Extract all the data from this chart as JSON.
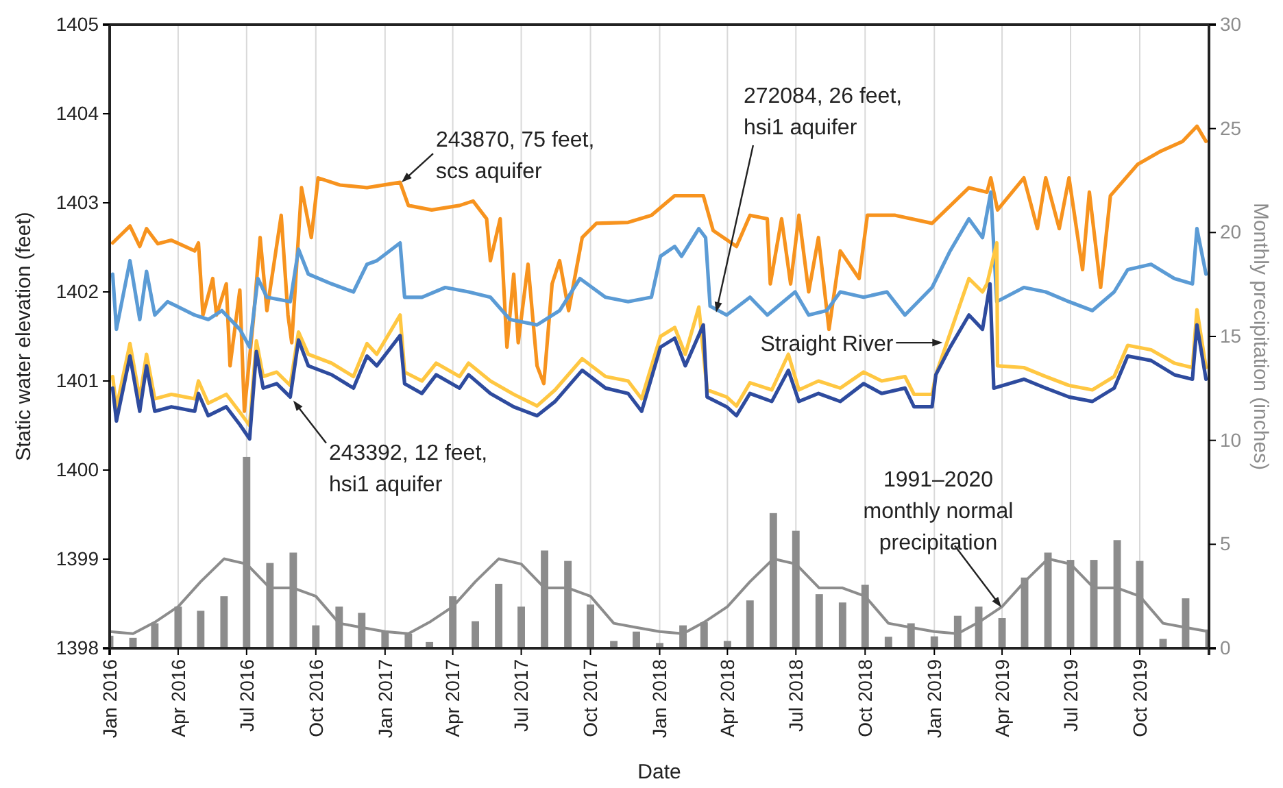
{
  "chart_data": {
    "type": "line",
    "xlabel": "Date",
    "ylabel": "Static water elevation (feet)",
    "y2label": "Monthly precipitation (inches)",
    "xlim": [
      "2016-01-01",
      "2020-01-01"
    ],
    "xticks": [
      {
        "value": "2016-01-01",
        "label": "Jan 2016"
      },
      {
        "value": "2016-04-01",
        "label": "Apr 2016"
      },
      {
        "value": "2016-07-01",
        "label": "Jul 2016"
      },
      {
        "value": "2016-10-01",
        "label": "Oct 2016"
      },
      {
        "value": "2017-01-01",
        "label": "Jan 2017"
      },
      {
        "value": "2017-04-01",
        "label": "Apr 2017"
      },
      {
        "value": "2017-07-01",
        "label": "Jul 2017"
      },
      {
        "value": "2017-10-01",
        "label": "Oct 2017"
      },
      {
        "value": "2018-01-01",
        "label": "Jan 2018"
      },
      {
        "value": "2018-04-01",
        "label": "Apr 2018"
      },
      {
        "value": "2018-07-01",
        "label": "Jul 2018"
      },
      {
        "value": "2018-10-01",
        "label": "Oct 2018"
      },
      {
        "value": "2019-01-01",
        "label": "Jan 2019"
      },
      {
        "value": "2019-04-01",
        "label": "Apr 2019"
      },
      {
        "value": "2019-07-01",
        "label": "Jul 2019"
      },
      {
        "value": "2019-10-01",
        "label": "Oct 2019"
      }
    ],
    "ylim": [
      1398,
      1405
    ],
    "yticks": [
      1398,
      1399,
      1400,
      1401,
      1402,
      1403,
      1404,
      1405
    ],
    "y2lim": [
      0,
      30
    ],
    "y2ticks": [
      0,
      5,
      10,
      15,
      20,
      25,
      30
    ],
    "grid": "x",
    "series": [
      {
        "type": "bar",
        "axis": "y2",
        "color": "#8c8c8c",
        "x": [
          "2016-01",
          "2016-02",
          "2016-03",
          "2016-04",
          "2016-05",
          "2016-06",
          "2016-07",
          "2016-08",
          "2016-09",
          "2016-10",
          "2016-11",
          "2016-12",
          "2017-01",
          "2017-02",
          "2017-03",
          "2017-04",
          "2017-05",
          "2017-06",
          "2017-07",
          "2017-08",
          "2017-09",
          "2017-10",
          "2017-11",
          "2017-12",
          "2018-01",
          "2018-02",
          "2018-03",
          "2018-04",
          "2018-05",
          "2018-06",
          "2018-07",
          "2018-08",
          "2018-09",
          "2018-10",
          "2018-11",
          "2018-12",
          "2019-01",
          "2019-02",
          "2019-03",
          "2019-04",
          "2019-05",
          "2019-06",
          "2019-07",
          "2019-08",
          "2019-09",
          "2019-10",
          "2019-11",
          "2019-12",
          "2020-01"
        ],
        "values": [
          0.6,
          0.5,
          1.2,
          2.0,
          1.8,
          2.5,
          9.2,
          4.1,
          4.6,
          1.1,
          2.0,
          1.7,
          0.8,
          0.7,
          0.3,
          2.5,
          1.3,
          3.1,
          2.0,
          4.7,
          4.2,
          2.1,
          0.35,
          0.8,
          0.25,
          1.1,
          1.25,
          0.35,
          2.3,
          6.5,
          5.65,
          2.6,
          2.2,
          3.05,
          0.55,
          1.2,
          0.57,
          1.56,
          2.0,
          1.45,
          3.4,
          4.6,
          4.25,
          4.25,
          5.2,
          4.2,
          0.45,
          2.4,
          0.9
        ]
      },
      {
        "axis": "y2",
        "color": "#8c8c8c",
        "x": [
          "2016-01",
          "2016-02",
          "2016-03",
          "2016-04",
          "2016-05",
          "2016-06",
          "2016-07",
          "2016-08",
          "2016-09",
          "2016-10",
          "2016-11",
          "2016-12",
          "2017-01",
          "2017-02",
          "2017-03",
          "2017-04",
          "2017-05",
          "2017-06",
          "2017-07",
          "2017-08",
          "2017-09",
          "2017-10",
          "2017-11",
          "2017-12",
          "2018-01",
          "2018-02",
          "2018-03",
          "2018-04",
          "2018-05",
          "2018-06",
          "2018-07",
          "2018-08",
          "2018-09",
          "2018-10",
          "2018-11",
          "2018-12",
          "2019-01",
          "2019-02",
          "2019-03",
          "2019-04",
          "2019-05",
          "2019-06",
          "2019-07",
          "2019-08",
          "2019-09",
          "2019-10",
          "2019-11",
          "2019-12",
          "2020-01"
        ],
        "values": [
          0.8,
          0.7,
          1.25,
          2.0,
          3.2,
          4.3,
          4.05,
          2.9,
          2.9,
          2.5,
          1.2,
          1.0,
          0.8,
          0.7,
          1.25,
          2.0,
          3.2,
          4.3,
          4.05,
          2.9,
          2.9,
          2.5,
          1.2,
          1.0,
          0.8,
          0.7,
          1.25,
          2.0,
          3.2,
          4.3,
          4.05,
          2.9,
          2.9,
          2.5,
          1.2,
          1.0,
          0.8,
          0.7,
          1.25,
          2.0,
          3.2,
          4.3,
          4.05,
          2.9,
          2.9,
          2.5,
          1.2,
          1.0,
          0.8
        ]
      },
      {
        "color": "#f7931e",
        "x": [
          "2016-01-05",
          "2016-01-28",
          "2016-02-10",
          "2016-02-19",
          "2016-03-05",
          "2016-03-23",
          "2016-04-23",
          "2016-04-28",
          "2016-05-04",
          "2016-05-17",
          "2016-05-22",
          "2016-06-04",
          "2016-06-09",
          "2016-06-22",
          "2016-06-28",
          "2016-07-10",
          "2016-07-19",
          "2016-07-28",
          "2016-08-16",
          "2016-08-25",
          "2016-08-30",
          "2016-09-12",
          "2016-09-25",
          "2016-10-04",
          "2016-11-02",
          "2016-12-08",
          "2017-01-21",
          "2017-02-01",
          "2017-03-04",
          "2017-04-10",
          "2017-04-28",
          "2017-05-16",
          "2017-05-21",
          "2017-06-03",
          "2017-06-12",
          "2017-06-21",
          "2017-06-27",
          "2017-07-10",
          "2017-07-22",
          "2017-07-31",
          "2017-08-11",
          "2017-08-21",
          "2017-09-02",
          "2017-09-20",
          "2017-10-09",
          "2017-11-20",
          "2017-12-21",
          "2018-01-21",
          "2018-02-28",
          "2018-03-13",
          "2018-04-13",
          "2018-05-01",
          "2018-05-24",
          "2018-05-28",
          "2018-06-12",
          "2018-06-24",
          "2018-07-05",
          "2018-07-18",
          "2018-07-31",
          "2018-08-14",
          "2018-08-29",
          "2018-09-23",
          "2018-10-04",
          "2018-11-10",
          "2018-12-29",
          "2019-02-16",
          "2019-03-12",
          "2019-03-17",
          "2019-03-26",
          "2019-04-30",
          "2019-05-18",
          "2019-05-29",
          "2019-06-16",
          "2019-06-29",
          "2019-07-17",
          "2019-07-26",
          "2019-08-10",
          "2019-08-23",
          "2019-09-28",
          "2019-10-29",
          "2019-11-27",
          "2019-12-16",
          "2019-12-28"
        ],
        "values": [
          1402.55,
          1402.74,
          1402.51,
          1402.71,
          1402.54,
          1402.58,
          1402.46,
          1402.55,
          1401.74,
          1402.15,
          1401.74,
          1402.09,
          1401.17,
          1402.02,
          1400.66,
          1401.69,
          1402.61,
          1401.79,
          1402.86,
          1401.74,
          1401.43,
          1403.17,
          1402.61,
          1403.28,
          1403.2,
          1403.17,
          1403.23,
          1402.97,
          1402.92,
          1402.97,
          1403.02,
          1402.82,
          1402.35,
          1402.82,
          1401.38,
          1402.2,
          1401.43,
          1402.31,
          1401.17,
          1400.97,
          1402.09,
          1402.35,
          1401.79,
          1402.61,
          1402.77,
          1402.78,
          1402.86,
          1403.08,
          1403.08,
          1402.69,
          1402.51,
          1402.86,
          1402.82,
          1402.09,
          1402.82,
          1402.09,
          1402.86,
          1402.0,
          1402.61,
          1401.58,
          1402.46,
          1402.15,
          1402.86,
          1402.86,
          1402.77,
          1403.17,
          1403.12,
          1403.28,
          1402.92,
          1403.28,
          1402.71,
          1403.28,
          1402.71,
          1403.28,
          1402.25,
          1403.12,
          1402.05,
          1403.08,
          1403.43,
          1403.58,
          1403.69,
          1403.86,
          1403.69
        ]
      },
      {
        "color": "#5b9bd5",
        "x": [
          "2016-01-05",
          "2016-01-10",
          "2016-01-28",
          "2016-02-10",
          "2016-02-19",
          "2016-03-01",
          "2016-03-18",
          "2016-04-23",
          "2016-05-11",
          "2016-05-29",
          "2016-06-22",
          "2016-07-05",
          "2016-07-16",
          "2016-07-28",
          "2016-08-28",
          "2016-09-08",
          "2016-09-21",
          "2016-10-22",
          "2016-11-20",
          "2016-12-08",
          "2016-12-21",
          "2017-01-21",
          "2017-01-27",
          "2017-02-19",
          "2017-03-22",
          "2017-04-22",
          "2017-05-21",
          "2017-06-16",
          "2017-07-22",
          "2017-08-21",
          "2017-09-17",
          "2017-10-21",
          "2017-11-20",
          "2017-12-21",
          "2018-01-02",
          "2018-01-21",
          "2018-01-30",
          "2018-02-22",
          "2018-03-03",
          "2018-03-09",
          "2018-03-31",
          "2018-05-01",
          "2018-05-24",
          "2018-06-30",
          "2018-07-18",
          "2018-08-11",
          "2018-08-29",
          "2018-09-29",
          "2018-10-30",
          "2018-11-23",
          "2018-12-29",
          "2019-01-22",
          "2019-02-16",
          "2019-03-06",
          "2019-03-17",
          "2019-03-25",
          "2019-04-30",
          "2019-05-29",
          "2019-06-29",
          "2019-07-30",
          "2019-08-28",
          "2019-09-15",
          "2019-10-16",
          "2019-11-16",
          "2019-12-10",
          "2019-12-16",
          "2019-12-28"
        ],
        "values": [
          1402.2,
          1401.58,
          1402.35,
          1401.69,
          1402.23,
          1401.74,
          1401.89,
          1401.74,
          1401.69,
          1401.79,
          1401.58,
          1401.38,
          1402.15,
          1401.94,
          1401.89,
          1402.48,
          1402.2,
          1402.09,
          1402.0,
          1402.31,
          1402.35,
          1402.55,
          1401.94,
          1401.94,
          1402.05,
          1402.0,
          1401.94,
          1401.69,
          1401.63,
          1401.79,
          1402.15,
          1401.94,
          1401.89,
          1401.94,
          1402.4,
          1402.51,
          1402.4,
          1402.71,
          1402.61,
          1401.84,
          1401.74,
          1401.94,
          1401.74,
          1402.0,
          1401.74,
          1401.79,
          1402.0,
          1401.94,
          1402.0,
          1401.74,
          1402.05,
          1402.46,
          1402.82,
          1402.61,
          1403.12,
          1401.89,
          1402.05,
          1402.0,
          1401.89,
          1401.79,
          1402.0,
          1402.25,
          1402.31,
          1402.15,
          1402.09,
          1402.71,
          1402.2
        ]
      },
      {
        "color": "#ffc742",
        "x": [
          "2016-01-05",
          "2016-01-10",
          "2016-01-28",
          "2016-02-10",
          "2016-02-19",
          "2016-03-01",
          "2016-03-23",
          "2016-04-23",
          "2016-04-28",
          "2016-05-11",
          "2016-06-04",
          "2016-06-22",
          "2016-07-05",
          "2016-07-14",
          "2016-07-23",
          "2016-08-10",
          "2016-08-28",
          "2016-09-08",
          "2016-09-21",
          "2016-10-22",
          "2016-11-20",
          "2016-12-08",
          "2016-12-21",
          "2017-01-21",
          "2017-01-27",
          "2017-02-19",
          "2017-03-10",
          "2017-04-10",
          "2017-04-22",
          "2017-05-21",
          "2017-06-21",
          "2017-07-22",
          "2017-08-15",
          "2017-09-20",
          "2017-10-21",
          "2017-11-20",
          "2017-12-08",
          "2018-01-02",
          "2018-01-21",
          "2018-02-04",
          "2018-02-22",
          "2018-03-05",
          "2018-03-31",
          "2018-04-13",
          "2018-05-01",
          "2018-05-30",
          "2018-06-21",
          "2018-07-05",
          "2018-07-31",
          "2018-08-29",
          "2018-09-29",
          "2018-10-23",
          "2018-11-23",
          "2018-12-05",
          "2018-12-29",
          "2019-01-03",
          "2019-02-16",
          "2019-03-06",
          "2019-03-12",
          "2019-03-25",
          "2019-03-26",
          "2019-04-30",
          "2019-05-29",
          "2019-06-29",
          "2019-07-30",
          "2019-08-28",
          "2019-09-15",
          "2019-10-16",
          "2019-11-16",
          "2019-12-10",
          "2019-12-16",
          "2019-12-28"
        ],
        "values": [
          1401.05,
          1400.7,
          1401.42,
          1400.8,
          1401.3,
          1400.8,
          1400.85,
          1400.8,
          1401.0,
          1400.75,
          1400.85,
          1400.65,
          1400.5,
          1401.45,
          1401.05,
          1401.1,
          1400.95,
          1401.55,
          1401.3,
          1401.2,
          1401.05,
          1401.42,
          1401.3,
          1401.74,
          1401.1,
          1401.0,
          1401.2,
          1401.05,
          1401.2,
          1401.0,
          1400.85,
          1400.72,
          1400.9,
          1401.25,
          1401.05,
          1401.0,
          1400.8,
          1401.5,
          1401.6,
          1401.3,
          1401.83,
          1400.9,
          1400.82,
          1400.72,
          1400.98,
          1400.9,
          1401.3,
          1400.9,
          1401.0,
          1400.92,
          1401.1,
          1401.0,
          1401.05,
          1400.85,
          1400.85,
          1401.07,
          1402.15,
          1402.0,
          1402.09,
          1402.55,
          1401.17,
          1401.15,
          1401.05,
          1400.95,
          1400.9,
          1401.05,
          1401.4,
          1401.35,
          1401.2,
          1401.15,
          1401.8,
          1401.15
        ]
      },
      {
        "color": "#2e4b9e",
        "x": [
          "2016-01-05",
          "2016-01-10",
          "2016-01-28",
          "2016-02-10",
          "2016-02-19",
          "2016-03-01",
          "2016-03-23",
          "2016-04-23",
          "2016-04-28",
          "2016-05-11",
          "2016-06-04",
          "2016-06-22",
          "2016-07-05",
          "2016-07-14",
          "2016-07-23",
          "2016-08-10",
          "2016-08-28",
          "2016-09-08",
          "2016-09-21",
          "2016-10-22",
          "2016-11-20",
          "2016-12-08",
          "2016-12-21",
          "2017-01-21",
          "2017-01-27",
          "2017-02-19",
          "2017-03-10",
          "2017-04-10",
          "2017-04-22",
          "2017-05-21",
          "2017-06-21",
          "2017-07-22",
          "2017-08-15",
          "2017-09-20",
          "2017-10-21",
          "2017-11-20",
          "2017-12-08",
          "2018-01-02",
          "2018-01-21",
          "2018-02-04",
          "2018-02-28",
          "2018-03-05",
          "2018-03-31",
          "2018-04-13",
          "2018-05-01",
          "2018-05-30",
          "2018-06-21",
          "2018-07-05",
          "2018-07-31",
          "2018-08-29",
          "2018-09-29",
          "2018-10-23",
          "2018-11-23",
          "2018-12-05",
          "2018-12-29",
          "2019-01-03",
          "2019-01-22",
          "2019-02-16",
          "2019-03-06",
          "2019-03-16",
          "2019-03-21",
          "2019-04-30",
          "2019-05-29",
          "2019-06-29",
          "2019-07-30",
          "2019-08-28",
          "2019-09-15",
          "2019-10-16",
          "2019-11-16",
          "2019-12-10",
          "2019-12-16",
          "2019-12-28"
        ],
        "values": [
          1400.92,
          1400.55,
          1401.28,
          1400.66,
          1401.17,
          1400.66,
          1400.71,
          1400.66,
          1400.86,
          1400.61,
          1400.71,
          1400.51,
          1400.35,
          1401.33,
          1400.92,
          1400.97,
          1400.82,
          1401.46,
          1401.17,
          1401.07,
          1400.92,
          1401.28,
          1401.17,
          1401.51,
          1400.97,
          1400.86,
          1401.07,
          1400.92,
          1401.07,
          1400.86,
          1400.71,
          1400.61,
          1400.77,
          1401.12,
          1400.92,
          1400.86,
          1400.66,
          1401.38,
          1401.48,
          1401.17,
          1401.63,
          1400.82,
          1400.71,
          1400.61,
          1400.86,
          1400.77,
          1401.12,
          1400.77,
          1400.86,
          1400.77,
          1400.97,
          1400.86,
          1400.92,
          1400.71,
          1400.71,
          1401.07,
          1401.38,
          1401.74,
          1401.58,
          1402.09,
          1400.92,
          1401.02,
          1400.92,
          1400.82,
          1400.77,
          1400.92,
          1401.28,
          1401.23,
          1401.07,
          1401.02,
          1401.63,
          1401.02
        ]
      }
    ],
    "annotations": [
      {
        "text": "243870, 75 feet,\nscs aquifer",
        "x": "2017-01-23",
        "y": 1403.23
      },
      {
        "text": "272084, 26 feet,\nhsi1 aquifer",
        "x": "2018-03-17",
        "y": 1401.77
      },
      {
        "text": "243392, 12 feet,\nhsi1 aquifer",
        "x": "2016-09-01",
        "y": 1400.78
      },
      {
        "text": "Straight River",
        "x": "2019-01-12",
        "y": 1401.43
      },
      {
        "text": "1991–2020\nmonthly normal\nprecipitation",
        "x": "2019-03-31",
        "y": 1398.46
      }
    ]
  }
}
